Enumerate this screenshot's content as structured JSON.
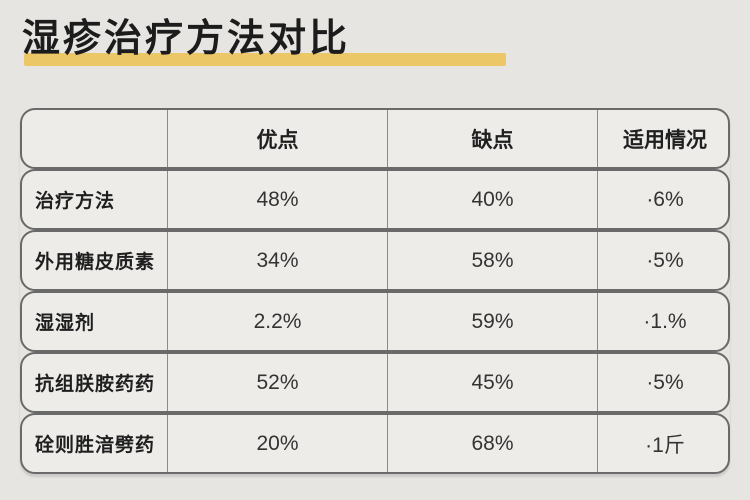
{
  "title": "湿疹治疗方法对比",
  "colors": {
    "accent_underline": "#ecc768",
    "page_bg": "#e6e5e2",
    "cell_bg": "#edece9",
    "border": "#6a6a6a",
    "title_text": "#1c1c1c"
  },
  "chart_data": {
    "type": "table",
    "title": "湿疹治疗方法对比",
    "columns": [
      "",
      "优点",
      "缺点",
      "适用情况"
    ],
    "rows": [
      [
        "治疗方法",
        "48%",
        "40%",
        "·6%"
      ],
      [
        "外用糖皮质素",
        "34%",
        "58%",
        "·5%"
      ],
      [
        "湿湿剂",
        "2.2%",
        "59%",
        "·1.%"
      ],
      [
        "抗组朕胺药药",
        "52%",
        "45%",
        "·5%"
      ],
      [
        "硂则胜湆劈药",
        "20%",
        "68%",
        "·1斤"
      ]
    ]
  }
}
